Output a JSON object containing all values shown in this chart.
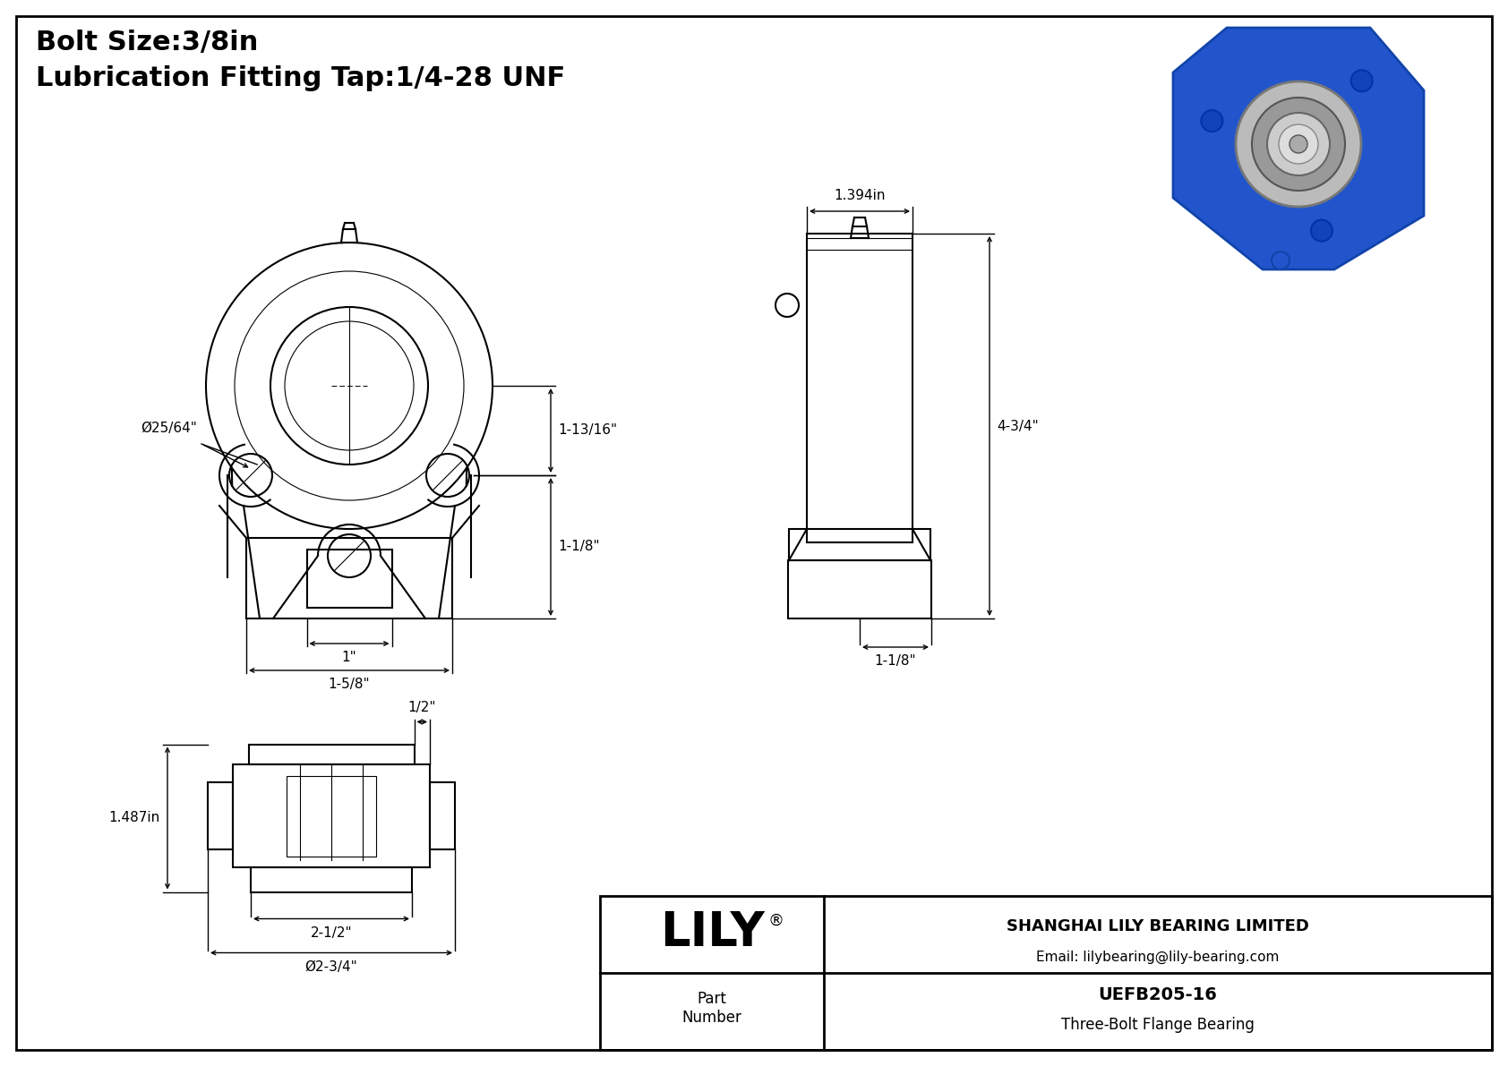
{
  "bg_color": "#ffffff",
  "line_color": "#000000",
  "title_line1": "Bolt Size:3/8in",
  "title_line2": "Lubrication Fitting Tap:1/4-28 UNF",
  "company": "SHANGHAI LILY BEARING LIMITED",
  "email": "Email: lilybearing@lily-bearing.com",
  "part_label": "Part\nNumber",
  "part_number": "UEFB205-16",
  "part_desc": "Three-Bolt Flange Bearing",
  "logo": "LILY",
  "dim_phi_label": "Ø25/64\"",
  "dim_1_13_16": "1-13/16\"",
  "dim_1_1_8_right": "1-1/8\"",
  "dim_1": "1\"",
  "dim_1_5_8": "1-5/8\"",
  "dim_1_394": "1.394in",
  "dim_4_3_4": "4-3/4\"",
  "dim_1_1_8_bottom": "1-1/8\"",
  "dim_1_487": "1.487in",
  "dim_half": "1/2\"",
  "dim_2_1_2": "2-1/2\"",
  "dim_phi_2_3_4": "Ø2-3/4\""
}
